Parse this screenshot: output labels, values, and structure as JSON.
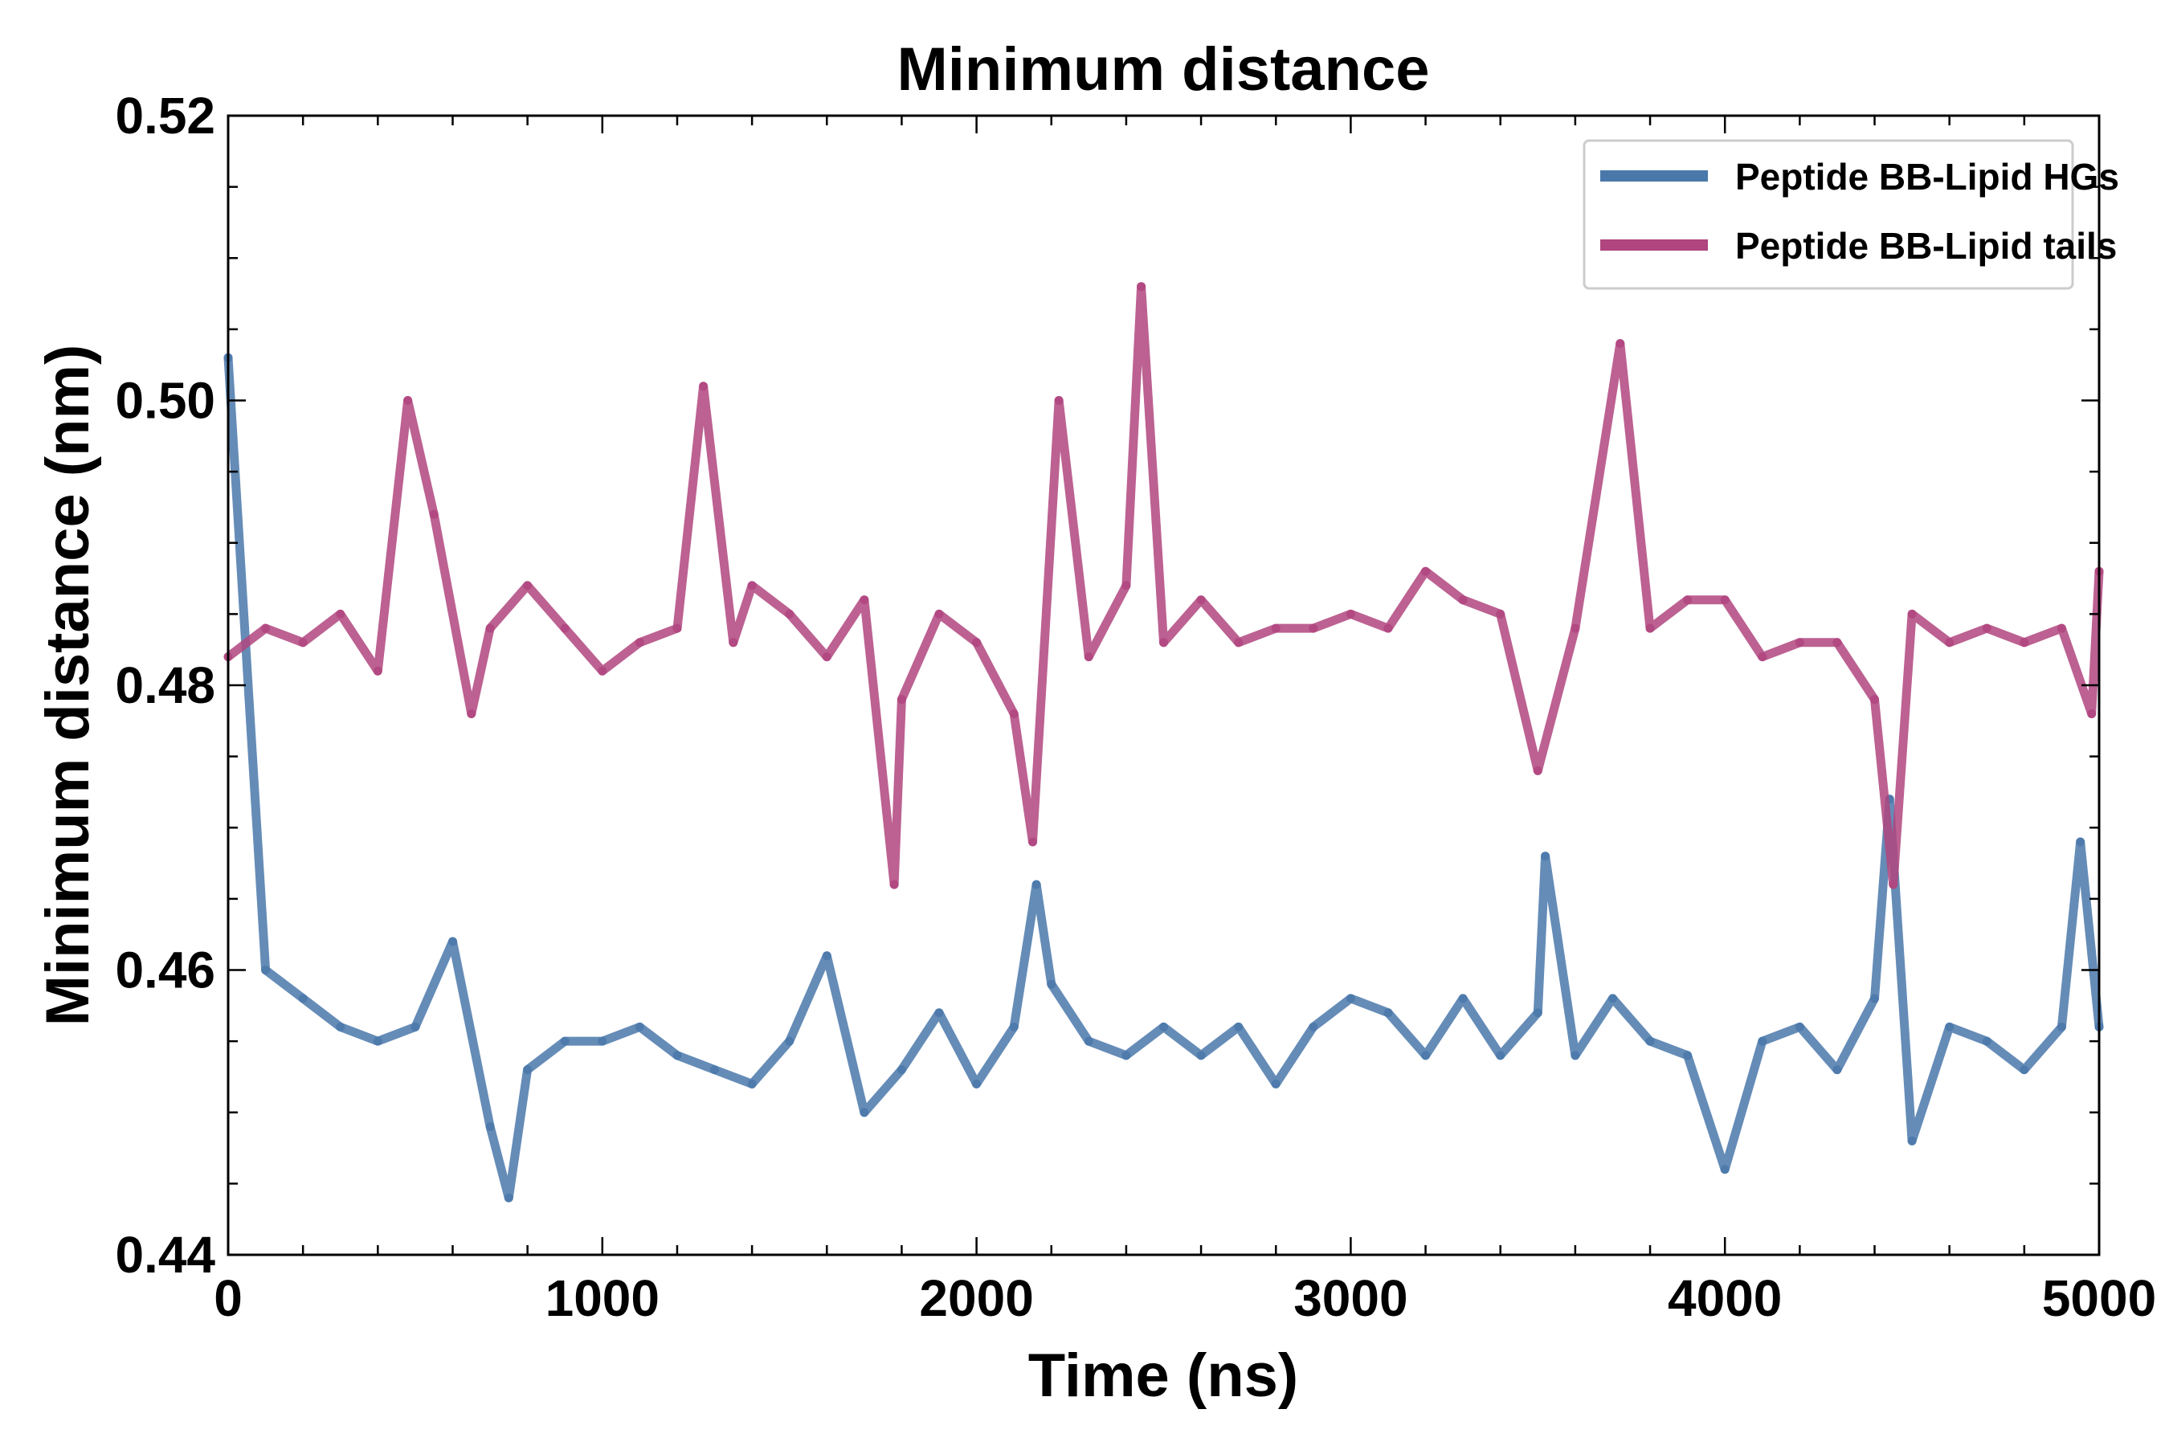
{
  "chart_data": {
    "type": "line",
    "title": "Minimum distance",
    "xlabel": "Time (ns)",
    "ylabel": "Minimum distance (nm)",
    "xlim": [
      0,
      5000
    ],
    "ylim": [
      0.44,
      0.52
    ],
    "x_ticks": [
      0,
      1000,
      2000,
      3000,
      4000,
      5000
    ],
    "x_tick_labels": [
      "0",
      "1000",
      "2000",
      "3000",
      "4000",
      "5000"
    ],
    "y_ticks": [
      0.44,
      0.46,
      0.48,
      0.5,
      0.52
    ],
    "y_tick_labels": [
      "0.44",
      "0.46",
      "0.48",
      "0.50",
      "0.52"
    ],
    "grid": false,
    "legend_position": "top-right",
    "series": [
      {
        "name": "Peptide BB-Lipid HGs",
        "color": "#4a78aa",
        "x": [
          0,
          100,
          200,
          300,
          400,
          500,
          600,
          700,
          750,
          800,
          900,
          1000,
          1100,
          1200,
          1300,
          1400,
          1500,
          1600,
          1700,
          1800,
          1900,
          2000,
          2100,
          2160,
          2200,
          2300,
          2400,
          2500,
          2600,
          2700,
          2800,
          2900,
          3000,
          3100,
          3200,
          3300,
          3400,
          3500,
          3520,
          3600,
          3700,
          3800,
          3900,
          4000,
          4100,
          4200,
          4300,
          4400,
          4440,
          4500,
          4600,
          4700,
          4800,
          4900,
          4950,
          5000
        ],
        "y": [
          0.503,
          0.46,
          0.458,
          0.456,
          0.455,
          0.456,
          0.462,
          0.449,
          0.444,
          0.453,
          0.455,
          0.455,
          0.456,
          0.454,
          0.453,
          0.452,
          0.455,
          0.461,
          0.45,
          0.453,
          0.457,
          0.452,
          0.456,
          0.466,
          0.459,
          0.455,
          0.454,
          0.456,
          0.454,
          0.456,
          0.452,
          0.456,
          0.458,
          0.457,
          0.454,
          0.458,
          0.454,
          0.457,
          0.468,
          0.454,
          0.458,
          0.455,
          0.454,
          0.446,
          0.455,
          0.456,
          0.453,
          0.458,
          0.472,
          0.448,
          0.456,
          0.455,
          0.453,
          0.456,
          0.469,
          0.456
        ]
      },
      {
        "name": "Peptide BB-Lipid tails",
        "color": "#b0457f",
        "x": [
          0,
          100,
          200,
          300,
          400,
          480,
          550,
          650,
          700,
          800,
          900,
          1000,
          1100,
          1200,
          1270,
          1350,
          1400,
          1500,
          1600,
          1700,
          1780,
          1800,
          1900,
          2000,
          2100,
          2150,
          2220,
          2300,
          2400,
          2440,
          2500,
          2600,
          2700,
          2800,
          2900,
          3000,
          3100,
          3200,
          3300,
          3400,
          3500,
          3600,
          3720,
          3800,
          3900,
          4000,
          4100,
          4200,
          4300,
          4400,
          4450,
          4500,
          4600,
          4700,
          4800,
          4900,
          4980,
          5000
        ],
        "y": [
          0.482,
          0.484,
          0.483,
          0.485,
          0.481,
          0.5,
          0.492,
          0.478,
          0.484,
          0.487,
          0.484,
          0.481,
          0.483,
          0.484,
          0.501,
          0.483,
          0.487,
          0.485,
          0.482,
          0.486,
          0.466,
          0.479,
          0.485,
          0.483,
          0.478,
          0.469,
          0.5,
          0.482,
          0.487,
          0.508,
          0.483,
          0.486,
          0.483,
          0.484,
          0.484,
          0.485,
          0.484,
          0.488,
          0.486,
          0.485,
          0.474,
          0.484,
          0.504,
          0.484,
          0.486,
          0.486,
          0.482,
          0.483,
          0.483,
          0.479,
          0.466,
          0.485,
          0.483,
          0.484,
          0.483,
          0.484,
          0.478,
          0.488
        ]
      }
    ]
  }
}
